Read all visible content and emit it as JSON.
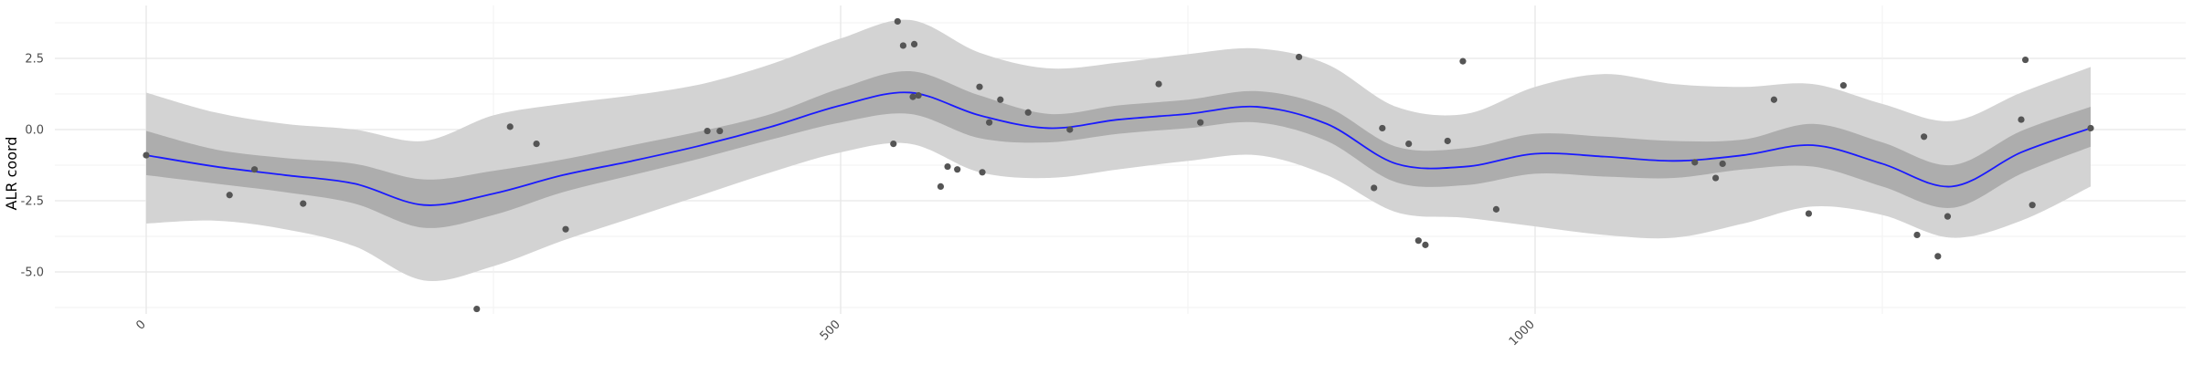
{
  "chart_data": {
    "type": "scatter",
    "title": "",
    "xlabel": "",
    "ylabel": "ALR coord",
    "xlim": [
      -65,
      1400
    ],
    "ylim": [
      -6.5,
      4.4
    ],
    "xticks": [
      0,
      500,
      1000
    ],
    "xtick_labels": [
      "0",
      "500",
      "1000"
    ],
    "yticks": [
      2.5,
      0.0,
      -2.5,
      -5.0
    ],
    "ytick_labels": [
      "2.5",
      "0.0",
      "-2.5",
      "-5.0"
    ],
    "grid": true,
    "legend": "none",
    "colors": {
      "points": "#555555",
      "smooth_line": "#1a1aff",
      "inner_band": "#adadad",
      "outer_band": "#d3d3d3",
      "grid": "#e6e6e6"
    },
    "points": [
      {
        "x": 0,
        "y": -0.9
      },
      {
        "x": 60,
        "y": -2.3
      },
      {
        "x": 78,
        "y": -1.4
      },
      {
        "x": 113,
        "y": -2.6
      },
      {
        "x": 238,
        "y": -6.3
      },
      {
        "x": 262,
        "y": 0.1
      },
      {
        "x": 281,
        "y": -0.5
      },
      {
        "x": 302,
        "y": -3.5
      },
      {
        "x": 404,
        "y": -0.05
      },
      {
        "x": 413,
        "y": -0.05
      },
      {
        "x": 538,
        "y": -0.5
      },
      {
        "x": 541,
        "y": 3.8
      },
      {
        "x": 545,
        "y": 2.95
      },
      {
        "x": 552,
        "y": 1.15
      },
      {
        "x": 553,
        "y": 3.0
      },
      {
        "x": 556,
        "y": 1.2
      },
      {
        "x": 572,
        "y": -2.0
      },
      {
        "x": 577,
        "y": -1.3
      },
      {
        "x": 584,
        "y": -1.4
      },
      {
        "x": 600,
        "y": 1.5
      },
      {
        "x": 602,
        "y": -1.5
      },
      {
        "x": 607,
        "y": 0.25
      },
      {
        "x": 615,
        "y": 1.05
      },
      {
        "x": 635,
        "y": 0.6
      },
      {
        "x": 665,
        "y": 0.0
      },
      {
        "x": 729,
        "y": 1.6
      },
      {
        "x": 759,
        "y": 0.25
      },
      {
        "x": 830,
        "y": 2.55
      },
      {
        "x": 884,
        "y": -2.05
      },
      {
        "x": 890,
        "y": 0.05
      },
      {
        "x": 909,
        "y": -0.5
      },
      {
        "x": 916,
        "y": -3.9
      },
      {
        "x": 921,
        "y": -4.05
      },
      {
        "x": 937,
        "y": -0.4
      },
      {
        "x": 948,
        "y": 2.4
      },
      {
        "x": 972,
        "y": -2.8
      },
      {
        "x": 1115,
        "y": -1.15
      },
      {
        "x": 1130,
        "y": -1.7
      },
      {
        "x": 1135,
        "y": -1.2
      },
      {
        "x": 1172,
        "y": 1.05
      },
      {
        "x": 1197,
        "y": -2.95
      },
      {
        "x": 1222,
        "y": 1.55
      },
      {
        "x": 1275,
        "y": -3.7
      },
      {
        "x": 1280,
        "y": -0.25
      },
      {
        "x": 1290,
        "y": -4.45
      },
      {
        "x": 1297,
        "y": -3.05
      },
      {
        "x": 1350,
        "y": 0.35
      },
      {
        "x": 1353,
        "y": 2.45
      },
      {
        "x": 1358,
        "y": -2.65
      },
      {
        "x": 1400,
        "y": 0.05
      }
    ],
    "smooth": {
      "x": [
        0,
        50,
        100,
        150,
        200,
        250,
        300,
        350,
        400,
        450,
        500,
        550,
        600,
        650,
        700,
        750,
        800,
        850,
        900,
        950,
        1000,
        1050,
        1100,
        1150,
        1200,
        1250,
        1300,
        1350,
        1400
      ],
      "y": [
        -0.9,
        -1.3,
        -1.6,
        -1.9,
        -2.65,
        -2.25,
        -1.6,
        -1.1,
        -0.55,
        0.1,
        0.85,
        1.3,
        0.5,
        0.05,
        0.35,
        0.55,
        0.8,
        0.2,
        -1.2,
        -1.3,
        -0.85,
        -0.95,
        -1.1,
        -0.9,
        -0.55,
        -1.2,
        -2.0,
        -0.8,
        0.05
      ],
      "lo_inner": [
        -1.6,
        -1.9,
        -2.2,
        -2.6,
        -3.45,
        -3.0,
        -2.2,
        -1.6,
        -1.0,
        -0.35,
        0.25,
        0.55,
        -0.3,
        -0.45,
        -0.15,
        0.05,
        0.25,
        -0.4,
        -1.85,
        -1.95,
        -1.55,
        -1.65,
        -1.7,
        -1.4,
        -1.3,
        -2.0,
        -2.75,
        -1.55,
        -0.6
      ],
      "hi_inner": [
        -0.05,
        -0.7,
        -1.0,
        -1.2,
        -1.75,
        -1.45,
        -1.05,
        -0.55,
        -0.05,
        0.55,
        1.45,
        2.05,
        1.2,
        0.55,
        0.85,
        1.05,
        1.35,
        0.8,
        -0.6,
        -0.65,
        -0.15,
        -0.25,
        -0.4,
        -0.35,
        0.2,
        -0.45,
        -1.25,
        -0.05,
        0.8
      ],
      "lo_outer": [
        -3.3,
        -3.2,
        -3.5,
        -4.1,
        -5.3,
        -4.8,
        -3.9,
        -3.1,
        -2.3,
        -1.5,
        -0.8,
        -0.5,
        -1.5,
        -1.7,
        -1.4,
        -1.1,
        -0.9,
        -1.6,
        -2.9,
        -3.1,
        -3.4,
        -3.7,
        -3.8,
        -3.3,
        -2.7,
        -3.0,
        -3.8,
        -3.2,
        -2.0
      ],
      "hi_outer": [
        1.3,
        0.6,
        0.2,
        0.0,
        -0.4,
        0.5,
        0.9,
        1.2,
        1.6,
        2.3,
        3.2,
        3.85,
        2.7,
        2.15,
        2.35,
        2.65,
        2.85,
        2.3,
        0.8,
        0.55,
        1.5,
        1.95,
        1.6,
        1.5,
        1.6,
        0.9,
        0.3,
        1.3,
        2.2
      ]
    }
  }
}
